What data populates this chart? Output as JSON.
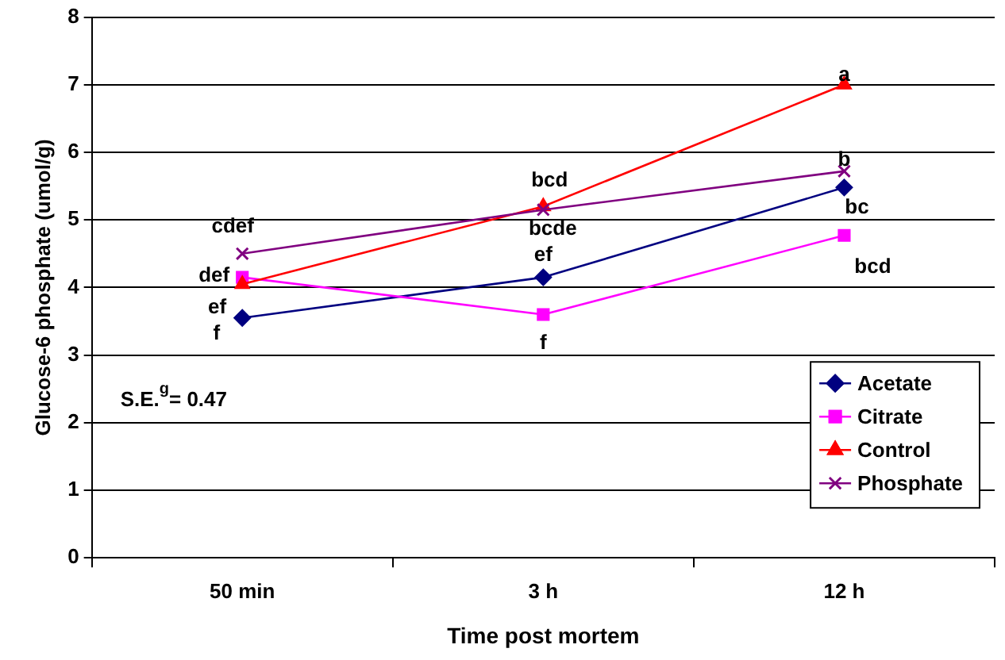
{
  "chart_data": {
    "type": "line",
    "xlabel": "Time post mortem",
    "ylabel": "Glucose-6 phosphate (umol/g)",
    "categories": [
      "50 min",
      "3 h",
      "12 h"
    ],
    "series": [
      {
        "name": "Acetate",
        "color": "#000080",
        "marker": "diamond",
        "values": [
          3.55,
          4.15,
          5.48
        ]
      },
      {
        "name": "Citrate",
        "color": "#ff00ff",
        "marker": "square",
        "values": [
          4.15,
          3.6,
          4.77
        ]
      },
      {
        "name": "Control",
        "color": "#ff0000",
        "marker": "triangle",
        "values": [
          4.05,
          5.2,
          7.0
        ]
      },
      {
        "name": "Phosphate",
        "color": "#800080",
        "marker": "cross",
        "values": [
          4.5,
          5.15,
          5.72
        ]
      }
    ],
    "ylim": [
      0,
      8
    ],
    "yticks": [
      0,
      1,
      2,
      3,
      4,
      5,
      6,
      7,
      8
    ],
    "grid": "y",
    "legend": "bottom right",
    "line_style": "solid",
    "annotations": [
      {
        "text": "f",
        "x": "50 min",
        "y": 3.55
      },
      {
        "text": "def",
        "x": "50 min",
        "y": 4.15
      },
      {
        "text": "ef",
        "x": "50 min",
        "y": 4.05
      },
      {
        "text": "cdef",
        "x": "50 min",
        "y": 4.5
      },
      {
        "text": "ef",
        "x": "3 h",
        "y": 4.15
      },
      {
        "text": "f",
        "x": "3 h",
        "y": 3.6
      },
      {
        "text": "bcd",
        "x": "3 h",
        "y": 5.2
      },
      {
        "text": "bcde",
        "x": "3 h",
        "y": 5.15
      },
      {
        "text": "bc",
        "x": "12 h",
        "y": 5.48
      },
      {
        "text": "bcd",
        "x": "12 h",
        "y": 4.77
      },
      {
        "text": "a",
        "x": "12 h",
        "y": 7.0
      },
      {
        "text": "b",
        "x": "12 h",
        "y": 5.72
      },
      "S.E.$^{g}$= 0.47"
    ]
  }
}
